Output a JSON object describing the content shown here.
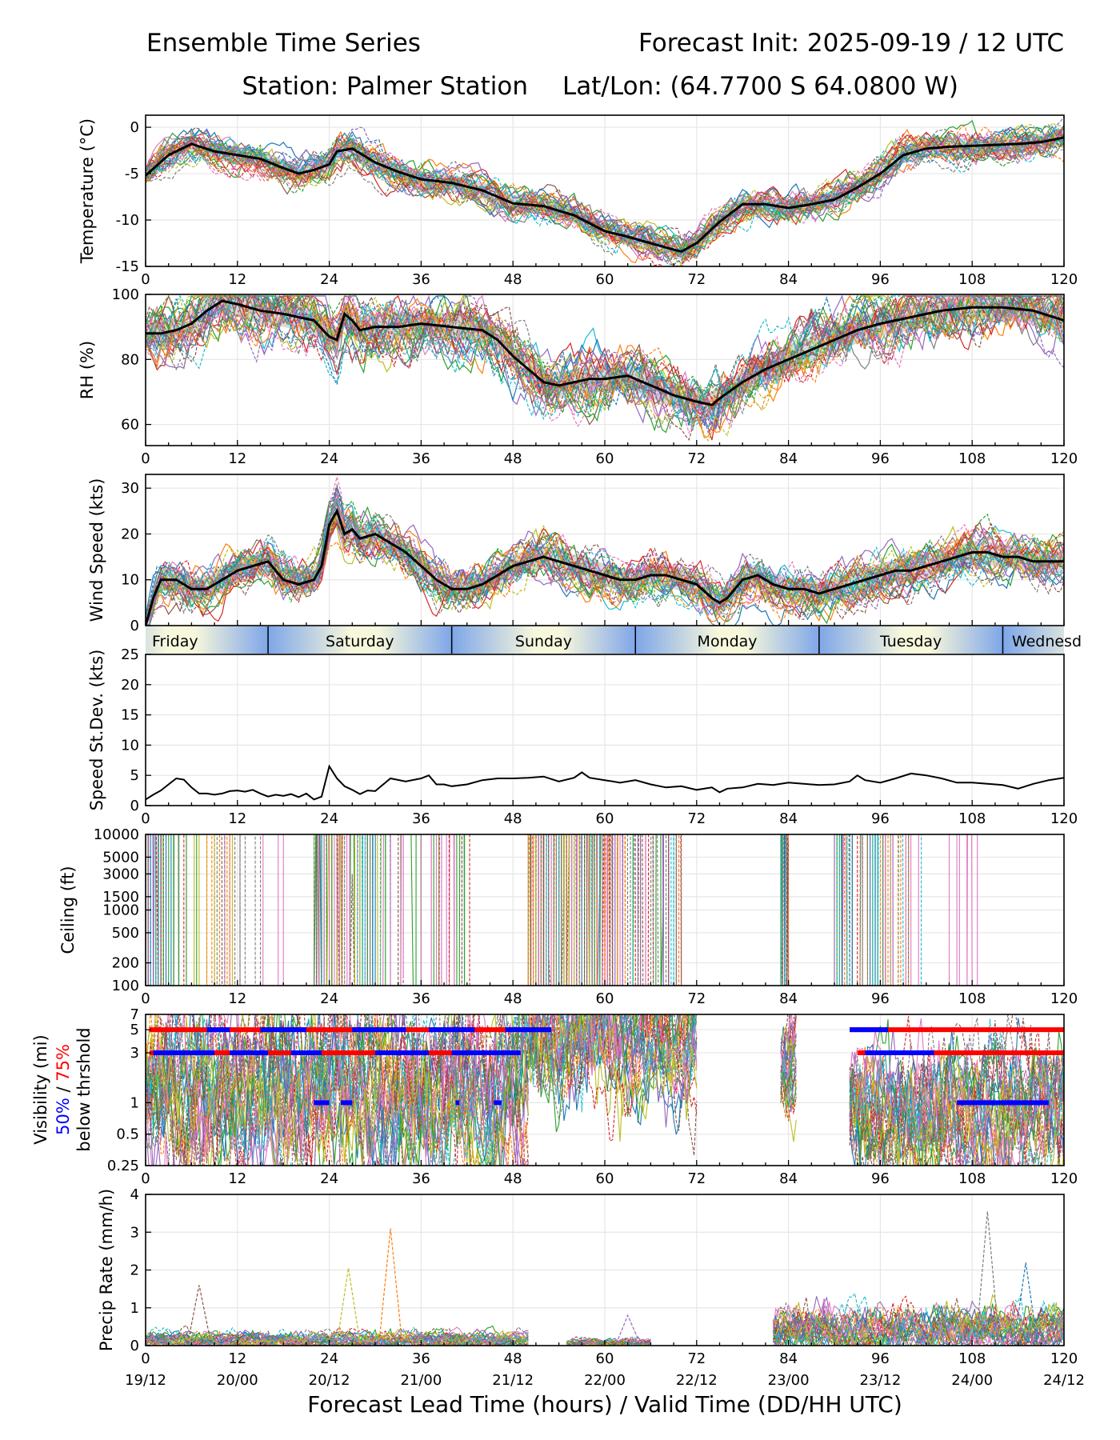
{
  "header": {
    "title_left": "Ensemble Time Series",
    "title_right": "Forecast Init: 2025-09-19 / 12 UTC",
    "station": "Station: Palmer Station",
    "latlon": "Lat/Lon: (64.7700 S 64.0800 W)"
  },
  "xlabel": "Forecast Lead Time (hours) / Valid Time (DD/HH UTC)",
  "colors": {
    "ensemble": [
      "#1f77b4",
      "#ff7f0e",
      "#2ca02c",
      "#d62728",
      "#9467bd",
      "#8c564b",
      "#e377c2",
      "#7f7f7f",
      "#bcbd22",
      "#17becf"
    ],
    "mean": "#000000",
    "spread": "#cfcfcf",
    "day_light": "#f7f7dc",
    "day_dark": "#7ea6e8",
    "vis_50": "#0000ff",
    "vis_75": "#ff0000"
  },
  "day_labels": [
    "Friday",
    "Saturday",
    "Sunday",
    "Monday",
    "Tuesday",
    "Wednesd"
  ],
  "vis_label": {
    "line1": "Visibility (mi)",
    "p50": "50%",
    "sep": " / ",
    "p75": "75%",
    "line3": "below thrshold"
  },
  "chart_data": [
    {
      "id": "temperature",
      "type": "line",
      "ylabel": "Temperature (°C)",
      "ylim": [
        -15,
        1.3
      ],
      "yticks": [
        0,
        -5,
        -10,
        -15
      ],
      "xticks": [
        0,
        12,
        24,
        36,
        48,
        60,
        72,
        84,
        96,
        108,
        120
      ],
      "xlim": [
        0,
        120
      ],
      "mean": {
        "x": [
          0,
          3,
          6,
          9,
          12,
          15,
          18,
          20,
          22,
          24,
          25,
          27,
          30,
          33,
          36,
          40,
          44,
          48,
          52,
          56,
          60,
          63,
          66,
          69,
          70,
          72,
          75,
          78,
          81,
          84,
          87,
          90,
          93,
          96,
          99,
          102,
          105,
          108,
          111,
          114,
          117,
          120
        ],
        "y": [
          -5.2,
          -3.0,
          -1.8,
          -2.6,
          -3.0,
          -3.4,
          -4.4,
          -5.0,
          -4.6,
          -4.0,
          -2.6,
          -2.3,
          -3.8,
          -4.8,
          -5.6,
          -6.0,
          -6.8,
          -8.2,
          -8.5,
          -9.5,
          -11.2,
          -11.8,
          -12.5,
          -13.2,
          -13.4,
          -12.5,
          -10.2,
          -8.3,
          -8.3,
          -8.7,
          -8.3,
          -7.8,
          -6.5,
          -5.0,
          -3.0,
          -2.3,
          -2.1,
          -2.0,
          -1.9,
          -1.8,
          -1.6,
          -1.1
        ]
      },
      "members": 30,
      "spread": 0.9,
      "noise": 1.1
    },
    {
      "id": "rh",
      "type": "line",
      "ylabel": "RH (%)",
      "ylim": [
        53.5,
        100
      ],
      "yticks": [
        60,
        80,
        100
      ],
      "xticks": [
        0,
        12,
        24,
        36,
        48,
        60,
        72,
        84,
        96,
        108,
        120
      ],
      "xlim": [
        0,
        120
      ],
      "mean": {
        "x": [
          0,
          2,
          4,
          6,
          8,
          10,
          12,
          15,
          18,
          20,
          22,
          24,
          25,
          26,
          27,
          28,
          30,
          33,
          36,
          40,
          44,
          46,
          48,
          50,
          52,
          54,
          56,
          58,
          60,
          63,
          66,
          69,
          72,
          74,
          75,
          78,
          81,
          84,
          87,
          90,
          93,
          96,
          100,
          104,
          108,
          112,
          116,
          120
        ],
        "y": [
          88,
          88,
          89,
          91,
          95,
          98,
          97,
          95,
          94,
          93,
          92,
          87,
          86,
          94,
          92,
          89,
          90,
          90,
          91,
          90,
          89,
          86,
          81,
          77,
          73,
          72,
          73,
          74,
          74,
          75,
          72,
          69,
          67,
          66,
          68,
          73,
          77,
          80,
          83,
          86,
          89,
          91,
          93,
          95,
          96,
          96,
          95,
          92
        ]
      },
      "members": 30,
      "spread": 4,
      "noise": 6
    },
    {
      "id": "wind",
      "type": "line",
      "ylabel": "Wind Speed (kts)",
      "ylim": [
        0,
        33
      ],
      "yticks": [
        0,
        10,
        20,
        30
      ],
      "xticks": [],
      "xlim": [
        0,
        120
      ],
      "mean": {
        "x": [
          0,
          1,
          2,
          4,
          6,
          8,
          10,
          12,
          14,
          16,
          18,
          20,
          22,
          23,
          24,
          25,
          26,
          27,
          28,
          30,
          32,
          34,
          36,
          38,
          40,
          42,
          44,
          46,
          48,
          50,
          52,
          54,
          56,
          58,
          60,
          62,
          64,
          66,
          68,
          70,
          72,
          74,
          75,
          76,
          78,
          80,
          82,
          84,
          86,
          88,
          90,
          92,
          94,
          96,
          98,
          100,
          102,
          104,
          106,
          108,
          110,
          112,
          114,
          116,
          118,
          120
        ],
        "y": [
          0,
          6,
          10,
          10,
          8,
          8,
          10,
          12,
          13,
          14,
          10,
          9,
          10,
          13,
          22,
          25,
          20,
          21,
          19,
          20,
          18,
          16,
          13,
          10,
          8,
          8,
          9,
          11,
          13,
          14,
          15,
          14,
          13,
          12,
          11,
          10,
          10,
          11,
          11,
          10,
          9,
          6,
          5,
          6,
          10,
          11,
          9,
          8,
          8,
          7,
          8,
          9,
          10,
          11,
          12,
          12,
          13,
          14,
          15,
          16,
          16,
          15,
          15,
          14,
          14,
          14
        ]
      },
      "members": 30,
      "spread": 2.5,
      "noise": 3.2
    },
    {
      "id": "speed_stdev",
      "type": "line",
      "ylabel": "Speed St.Dev. (kts)",
      "ylim": [
        0,
        25
      ],
      "yticks": [
        0,
        5,
        10,
        15,
        20,
        25
      ],
      "xticks": [
        0,
        12,
        24,
        36,
        48,
        60,
        72,
        84,
        96,
        108,
        120
      ],
      "xlim": [
        0,
        120
      ],
      "series": {
        "x": [
          0,
          1,
          2,
          3,
          4,
          5,
          6,
          7,
          8,
          9,
          10,
          11,
          12,
          13,
          14,
          15,
          16,
          17,
          18,
          19,
          20,
          21,
          22,
          23,
          24,
          25,
          26,
          27,
          28,
          29,
          30,
          32,
          34,
          36,
          37,
          38,
          39,
          40,
          42,
          44,
          46,
          48,
          50,
          52,
          54,
          56,
          57,
          58,
          60,
          62,
          64,
          66,
          68,
          70,
          72,
          74,
          75,
          76,
          78,
          80,
          82,
          84,
          86,
          88,
          90,
          92,
          93,
          94,
          96,
          98,
          100,
          102,
          104,
          106,
          108,
          110,
          112,
          114,
          116,
          118,
          120
        ],
        "y": [
          1.0,
          1.8,
          2.5,
          3.5,
          4.5,
          4.3,
          3.0,
          2.0,
          2.0,
          1.8,
          2.0,
          2.4,
          2.5,
          2.3,
          2.6,
          2.0,
          1.5,
          1.8,
          1.6,
          1.9,
          1.4,
          2.0,
          1.0,
          1.5,
          6.5,
          4.5,
          3.2,
          2.6,
          1.9,
          2.5,
          2.4,
          4.5,
          4.0,
          4.5,
          5.0,
          3.5,
          3.5,
          3.2,
          3.5,
          4.2,
          4.5,
          4.5,
          4.6,
          4.8,
          4.0,
          4.6,
          5.5,
          4.6,
          4.2,
          3.8,
          4.2,
          3.5,
          3.0,
          3.2,
          2.6,
          3.0,
          2.2,
          2.8,
          3.0,
          3.6,
          3.4,
          3.8,
          3.6,
          3.4,
          3.5,
          4.0,
          5.0,
          4.2,
          3.8,
          4.5,
          5.3,
          5.0,
          4.5,
          3.8,
          3.8,
          3.6,
          3.4,
          2.8,
          3.6,
          4.2,
          4.6
        ]
      }
    },
    {
      "id": "ceiling",
      "type": "line",
      "ylabel": "Ceiling (ft)",
      "yscale": "log",
      "ylim": [
        100,
        10000
      ],
      "yticks": [
        10000,
        5000,
        3000,
        1500,
        1000,
        500,
        200,
        100
      ],
      "xticks": [
        0,
        12,
        24,
        36,
        48,
        60,
        72,
        84,
        96,
        108,
        120
      ],
      "xlim": [
        0,
        120
      ],
      "segments": [
        [
          0,
          22,
          3500,
          700
        ],
        [
          22,
          50,
          3500,
          400
        ],
        [
          50,
          70,
          4500,
          300
        ],
        [
          83,
          84,
          4000,
          200
        ],
        [
          90,
          120,
          2200,
          600
        ]
      ],
      "members": 30
    },
    {
      "id": "visibility",
      "type": "line",
      "yscale": "log",
      "ylim": [
        0.25,
        7
      ],
      "yticks": [
        7,
        5,
        3,
        1,
        0.5,
        0.25
      ],
      "xticks": [
        0,
        12,
        24,
        36,
        48,
        60,
        72,
        84,
        96,
        108,
        120
      ],
      "xlim": [
        0,
        120
      ],
      "segments": [
        [
          0,
          50,
          1.4,
          0.7
        ],
        [
          50,
          72,
          4,
          0.5
        ],
        [
          83,
          85,
          2,
          0.4
        ],
        [
          92,
          120,
          0.9,
          0.5
        ]
      ],
      "members": 30,
      "p75_bars": [
        {
          "y": 5,
          "x0": 0.5,
          "x1": 53
        },
        {
          "y": 5,
          "x0": 92,
          "x1": 120
        },
        {
          "y": 3,
          "x0": 0.5,
          "x1": 49
        },
        {
          "y": 3,
          "x0": 93,
          "x1": 120
        }
      ],
      "p50_bars": [
        {
          "y": 5,
          "x0": 8,
          "x1": 11
        },
        {
          "y": 5,
          "x0": 15,
          "x1": 21
        },
        {
          "y": 5,
          "x0": 27,
          "x1": 34
        },
        {
          "y": 5,
          "x0": 37,
          "x1": 43
        },
        {
          "y": 5,
          "x0": 47,
          "x1": 53
        },
        {
          "y": 5,
          "x0": 92,
          "x1": 97
        },
        {
          "y": 3,
          "x0": 1,
          "x1": 9
        },
        {
          "y": 3,
          "x0": 11,
          "x1": 16
        },
        {
          "y": 3,
          "x0": 19,
          "x1": 23
        },
        {
          "y": 3,
          "x0": 30,
          "x1": 37
        },
        {
          "y": 3,
          "x0": 40,
          "x1": 49
        },
        {
          "y": 3,
          "x0": 94,
          "x1": 103
        },
        {
          "y": 1,
          "x0": 22,
          "x1": 24
        },
        {
          "y": 1,
          "x0": 25.5,
          "x1": 27
        },
        {
          "y": 1,
          "x0": 40.5,
          "x1": 41
        },
        {
          "y": 1,
          "x0": 45.5,
          "x1": 46.5
        },
        {
          "y": 1,
          "x0": 106,
          "x1": 118
        }
      ]
    },
    {
      "id": "precip",
      "type": "line",
      "ylabel": "Precip Rate (mm/h)",
      "ylim": [
        0,
        4
      ],
      "yticks": [
        0,
        1,
        2,
        3,
        4
      ],
      "xticks": [
        0,
        12,
        24,
        36,
        48,
        60,
        72,
        84,
        96,
        108,
        120
      ],
      "xlim": [
        0,
        120
      ],
      "segments": [
        [
          0,
          50,
          0.15,
          0.25
        ],
        [
          55,
          66,
          0.05,
          0.15
        ],
        [
          82,
          120,
          0.5,
          0.6
        ]
      ],
      "members": 30,
      "spikes": [
        {
          "x": 7,
          "y": 1.6
        },
        {
          "x": 26.5,
          "y": 2.05
        },
        {
          "x": 32,
          "y": 3.1
        },
        {
          "x": 63,
          "y": 0.8
        },
        {
          "x": 110,
          "y": 3.55
        },
        {
          "x": 115,
          "y": 2.2
        }
      ]
    }
  ],
  "valid_times": [
    "19/12",
    "20/00",
    "20/12",
    "21/00",
    "21/12",
    "22/00",
    "22/12",
    "23/00",
    "23/12",
    "24/00",
    "24/12"
  ]
}
